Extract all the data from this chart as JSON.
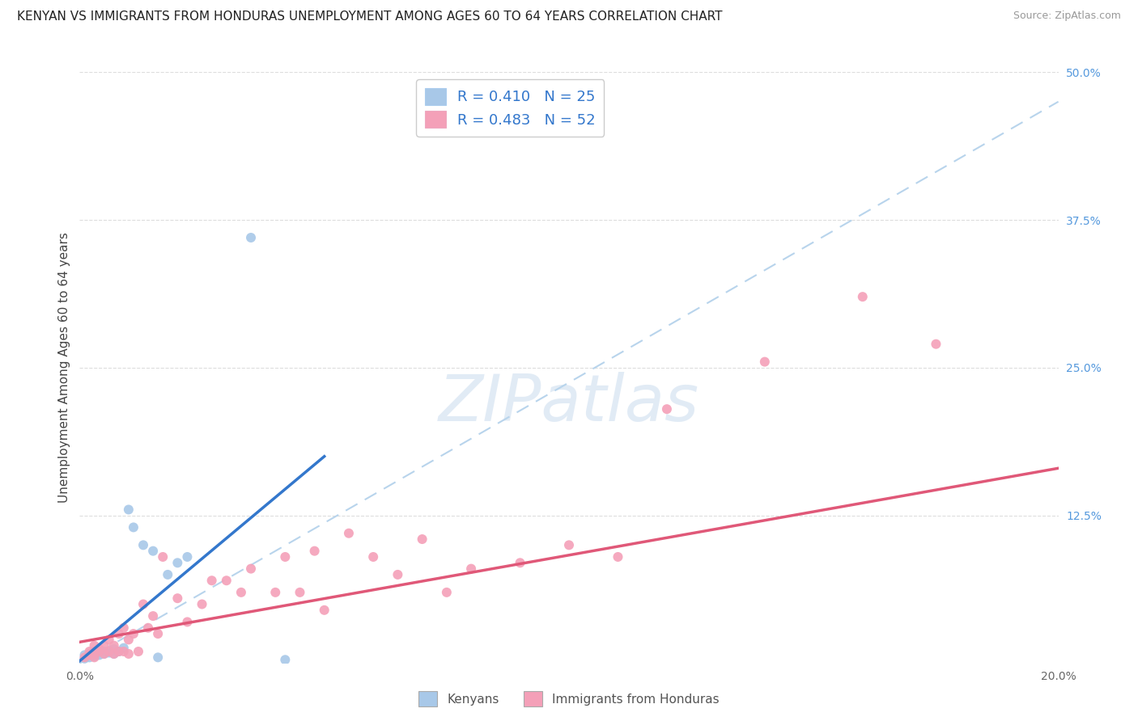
{
  "title": "KENYAN VS IMMIGRANTS FROM HONDURAS UNEMPLOYMENT AMONG AGES 60 TO 64 YEARS CORRELATION CHART",
  "source": "Source: ZipAtlas.com",
  "ylabel": "Unemployment Among Ages 60 to 64 years",
  "xlim": [
    0.0,
    0.2
  ],
  "ylim": [
    0.0,
    0.5
  ],
  "xtick_positions": [
    0.0,
    0.04,
    0.08,
    0.12,
    0.16,
    0.2
  ],
  "xticklabels": [
    "0.0%",
    "",
    "",
    "",
    "",
    "20.0%"
  ],
  "ytick_positions": [
    0.0,
    0.125,
    0.25,
    0.375,
    0.5
  ],
  "yticklabels_right": [
    "",
    "12.5%",
    "25.0%",
    "37.5%",
    "50.0%"
  ],
  "kenyan_color": "#a8c8e8",
  "honduras_color": "#f4a0b8",
  "kenyan_line_color": "#3377cc",
  "honduras_line_color": "#e05878",
  "dash_line_color": "#b8d4ec",
  "watermark": "ZIPatlas",
  "legend_R_kenyan": "R = 0.410",
  "legend_N_kenyan": "N = 25",
  "legend_R_honduras": "R = 0.483",
  "legend_N_honduras": "N = 52",
  "legend_label_kenyan": "Kenyans",
  "legend_label_honduras": "Immigrants from Honduras",
  "kenyan_x": [
    0.001,
    0.001,
    0.002,
    0.002,
    0.003,
    0.003,
    0.004,
    0.004,
    0.005,
    0.005,
    0.006,
    0.007,
    0.007,
    0.008,
    0.009,
    0.01,
    0.011,
    0.013,
    0.015,
    0.016,
    0.018,
    0.02,
    0.022,
    0.035,
    0.042
  ],
  "kenyan_y": [
    0.004,
    0.007,
    0.005,
    0.008,
    0.006,
    0.01,
    0.007,
    0.009,
    0.008,
    0.01,
    0.009,
    0.008,
    0.012,
    0.01,
    0.013,
    0.13,
    0.115,
    0.1,
    0.095,
    0.005,
    0.075,
    0.085,
    0.09,
    0.36,
    0.003
  ],
  "honduras_x": [
    0.001,
    0.002,
    0.002,
    0.003,
    0.003,
    0.003,
    0.004,
    0.004,
    0.005,
    0.005,
    0.006,
    0.006,
    0.007,
    0.007,
    0.008,
    0.008,
    0.009,
    0.009,
    0.01,
    0.01,
    0.011,
    0.012,
    0.013,
    0.014,
    0.015,
    0.016,
    0.017,
    0.02,
    0.022,
    0.025,
    0.027,
    0.03,
    0.033,
    0.035,
    0.04,
    0.042,
    0.045,
    0.048,
    0.05,
    0.055,
    0.06,
    0.065,
    0.07,
    0.075,
    0.08,
    0.09,
    0.1,
    0.11,
    0.12,
    0.14,
    0.16,
    0.175
  ],
  "honduras_y": [
    0.005,
    0.007,
    0.01,
    0.005,
    0.008,
    0.015,
    0.01,
    0.012,
    0.008,
    0.015,
    0.01,
    0.02,
    0.008,
    0.015,
    0.01,
    0.025,
    0.01,
    0.03,
    0.008,
    0.02,
    0.025,
    0.01,
    0.05,
    0.03,
    0.04,
    0.025,
    0.09,
    0.055,
    0.035,
    0.05,
    0.07,
    0.07,
    0.06,
    0.08,
    0.06,
    0.09,
    0.06,
    0.095,
    0.045,
    0.11,
    0.09,
    0.075,
    0.105,
    0.06,
    0.08,
    0.085,
    0.1,
    0.09,
    0.215,
    0.255,
    0.31,
    0.27
  ],
  "kenyan_line_x": [
    0.0,
    0.05
  ],
  "kenyan_line_y": [
    0.002,
    0.175
  ],
  "honduras_line_x": [
    0.0,
    0.2
  ],
  "honduras_line_y": [
    0.018,
    0.165
  ],
  "dash_line_x": [
    0.0,
    0.2
  ],
  "dash_line_y": [
    0.0,
    0.475
  ],
  "title_fontsize": 11,
  "axis_label_fontsize": 11,
  "tick_fontsize": 10,
  "marker_size": 75,
  "background_color": "#ffffff",
  "grid_color": "#dddddd"
}
